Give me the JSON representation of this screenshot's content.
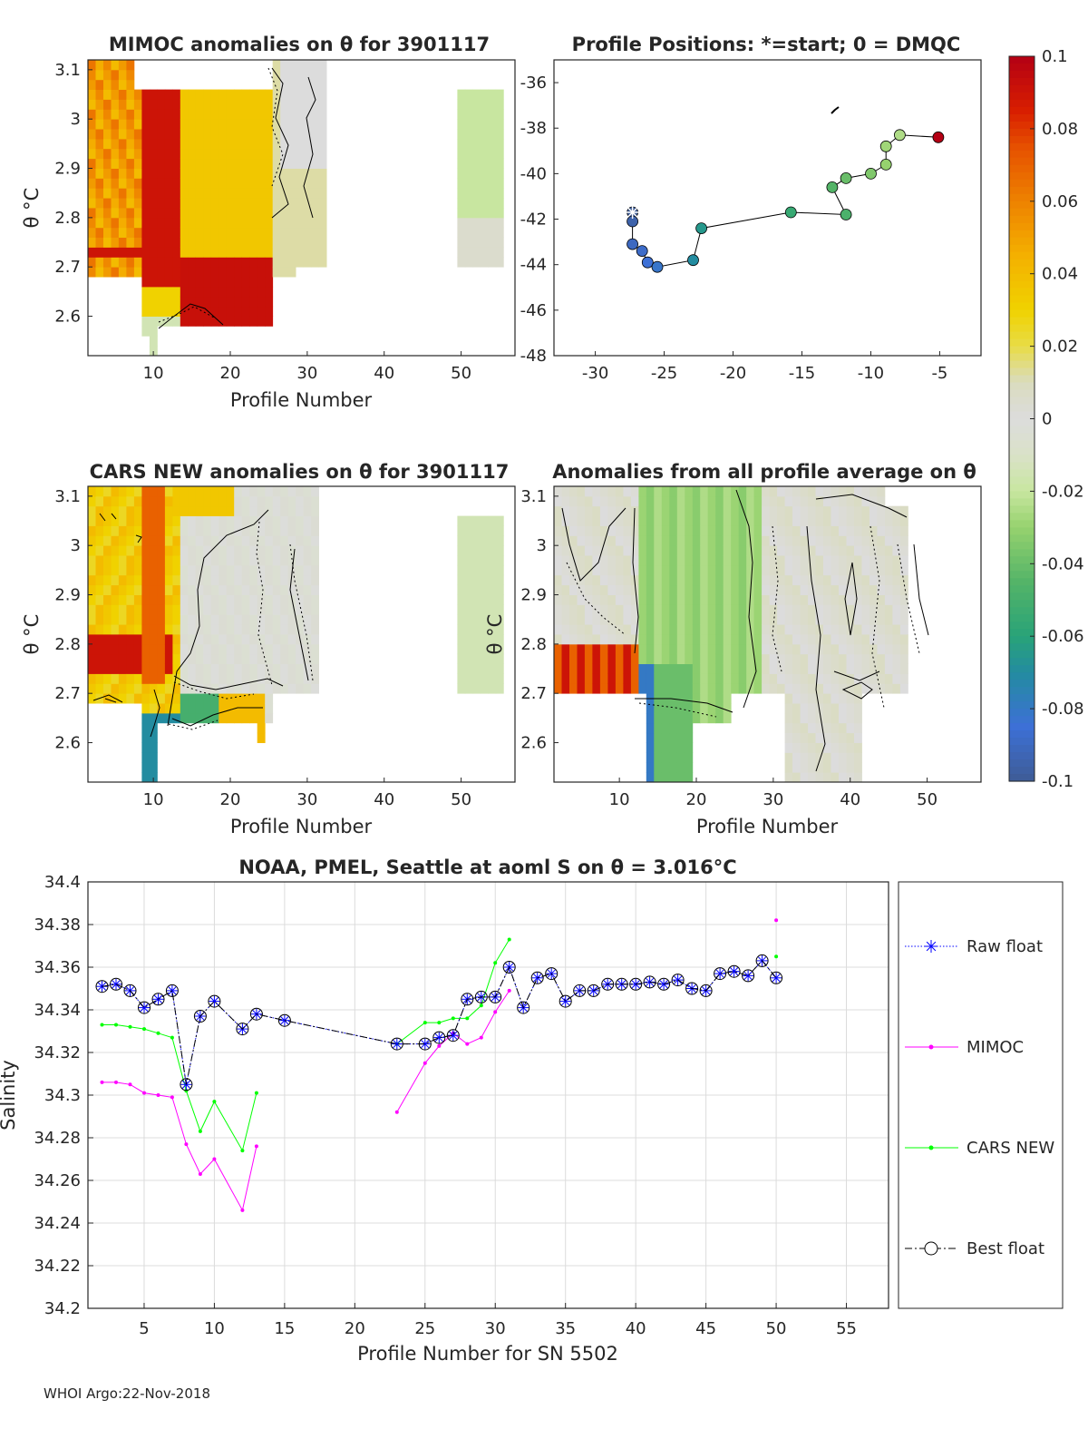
{
  "footer": "WHOI Argo:22-Nov-2018",
  "colorbar": {
    "ticks": [
      "0.1",
      "0.08",
      "0.06",
      "0.04",
      "0.02",
      "0",
      "-0.02",
      "-0.04",
      "-0.06",
      "-0.08",
      "-0.1"
    ],
    "range": [
      -0.1,
      0.1
    ]
  },
  "chart_data": [
    {
      "type": "heatmap",
      "title": "MIMOC anomalies on θ  for 3901117",
      "xlabel": "Profile Number",
      "ylabel": "θ °C",
      "xticks": [
        "10",
        "20",
        "30",
        "40",
        "50"
      ],
      "yticks": [
        "3.1",
        "3",
        "2.9",
        "2.8",
        "2.7",
        "2.6"
      ],
      "xlim": [
        1.5,
        57
      ],
      "ylim": [
        2.52,
        3.12
      ]
    },
    {
      "type": "scatter",
      "title": "Profile Positions: *=start; 0 = DMQC",
      "xticks": [
        "-30",
        "-25",
        "-20",
        "-15",
        "-10",
        "-5"
      ],
      "yticks": [
        "-36",
        "-38",
        "-40",
        "-42",
        "-44",
        "-46",
        "-48"
      ],
      "xlim": [
        -33,
        -2
      ],
      "ylim": [
        -48,
        -35
      ],
      "lon": [
        -27.3,
        -27.3,
        -27.3,
        -26.6,
        -26.2,
        -25.5,
        -22.9,
        -22.3,
        -15.8,
        -11.8,
        -12.8,
        -11.8,
        -10.0,
        -8.9,
        -8.9,
        -7.9,
        -5.1
      ],
      "lat": [
        -41.7,
        -42.1,
        -43.1,
        -43.4,
        -43.9,
        -44.1,
        -43.8,
        -42.4,
        -41.7,
        -41.8,
        -40.6,
        -40.2,
        -40.0,
        -39.6,
        -38.8,
        -38.3,
        -38.4
      ],
      "values": [
        -0.1,
        -0.095,
        -0.09,
        -0.088,
        -0.085,
        -0.082,
        -0.07,
        -0.065,
        -0.055,
        -0.048,
        -0.045,
        -0.04,
        -0.035,
        -0.03,
        -0.028,
        -0.025,
        0.1
      ]
    },
    {
      "type": "heatmap",
      "title": "CARS NEW anomalies on θ for 3901117",
      "xlabel": "Profile Number",
      "ylabel": "θ °C",
      "xticks": [
        "10",
        "20",
        "30",
        "40",
        "50"
      ],
      "yticks": [
        "3.1",
        "3",
        "2.9",
        "2.8",
        "2.7",
        "2.6"
      ],
      "xlim": [
        1.5,
        57
      ],
      "ylim": [
        2.52,
        3.12
      ]
    },
    {
      "type": "heatmap",
      "title": "Anomalies from all profile average on θ",
      "xlabel": "Profile Number",
      "ylabel": "θ °C",
      "xticks": [
        "10",
        "20",
        "30",
        "40",
        "50"
      ],
      "yticks": [
        "3.1",
        "3",
        "2.9",
        "2.8",
        "2.7",
        "2.6"
      ],
      "xlim": [
        1.5,
        57
      ],
      "ylim": [
        2.52,
        3.12
      ]
    },
    {
      "type": "line",
      "title": "NOAA, PMEL, Seattle at aoml S on θ = 3.016°C",
      "xlabel": "Profile Number for SN 5502",
      "ylabel": "Salinity",
      "xticks": [
        "5",
        "10",
        "15",
        "20",
        "25",
        "30",
        "35",
        "40",
        "45",
        "50",
        "55"
      ],
      "yticks": [
        "34.4",
        "34.38",
        "34.36",
        "34.34",
        "34.32",
        "34.3",
        "34.28",
        "34.26",
        "34.24",
        "34.22",
        "34.2"
      ],
      "xlim": [
        1,
        58
      ],
      "ylim": [
        34.2,
        34.4
      ],
      "series": [
        {
          "name": "Raw float",
          "color": "#0000ff",
          "x": [
            2,
            3,
            4,
            5,
            6,
            7,
            8,
            9,
            10,
            12,
            13,
            15,
            23,
            25,
            26,
            27,
            28,
            29,
            30,
            31,
            32,
            33,
            34,
            35,
            36,
            37,
            38,
            39,
            40,
            41,
            42,
            43,
            44,
            45,
            46,
            47,
            48,
            49,
            50
          ],
          "y": [
            34.351,
            34.352,
            34.349,
            34.341,
            34.345,
            34.349,
            34.305,
            34.337,
            34.344,
            34.331,
            34.338,
            34.335,
            34.324,
            34.324,
            34.327,
            34.328,
            34.345,
            34.346,
            34.346,
            34.36,
            34.341,
            34.355,
            34.357,
            34.344,
            34.349,
            34.349,
            34.352,
            34.352,
            34.352,
            34.353,
            34.352,
            34.354,
            34.35,
            34.349,
            34.357,
            34.358,
            34.356,
            34.363,
            34.355
          ]
        },
        {
          "name": "MIMOC",
          "color": "#ff00ff",
          "x": [
            2,
            3,
            4,
            5,
            6,
            7,
            8,
            9,
            10,
            12,
            13,
            null,
            23,
            25,
            26,
            27,
            28,
            29,
            30,
            31,
            null,
            50
          ],
          "y": [
            34.306,
            34.306,
            34.305,
            34.301,
            34.3,
            34.299,
            34.277,
            34.263,
            34.27,
            34.246,
            34.276,
            null,
            34.292,
            34.315,
            34.323,
            34.329,
            34.324,
            34.327,
            34.339,
            34.349,
            null,
            34.382
          ]
        },
        {
          "name": "CARS NEW",
          "color": "#00ff00",
          "x": [
            2,
            3,
            4,
            5,
            6,
            7,
            8,
            9,
            10,
            12,
            13,
            null,
            23,
            25,
            26,
            27,
            28,
            29,
            30,
            31,
            null,
            50
          ],
          "y": [
            34.333,
            34.333,
            34.332,
            34.331,
            34.329,
            34.327,
            34.302,
            34.283,
            34.297,
            34.274,
            34.301,
            null,
            34.324,
            34.334,
            34.334,
            34.336,
            34.336,
            34.342,
            34.362,
            34.373,
            null,
            34.365
          ]
        },
        {
          "name": "Best float",
          "color": "#000000",
          "x": [
            2,
            3,
            4,
            5,
            6,
            7,
            8,
            9,
            10,
            12,
            13,
            15,
            23,
            25,
            26,
            27,
            28,
            29,
            30,
            31,
            32,
            33,
            34,
            35,
            36,
            37,
            38,
            39,
            40,
            41,
            42,
            43,
            44,
            45,
            46,
            47,
            48,
            49,
            50
          ],
          "y": [
            34.351,
            34.352,
            34.349,
            34.341,
            34.345,
            34.349,
            34.305,
            34.337,
            34.344,
            34.331,
            34.338,
            34.335,
            34.324,
            34.324,
            34.327,
            34.328,
            34.345,
            34.346,
            34.346,
            34.36,
            34.341,
            34.355,
            34.357,
            34.344,
            34.349,
            34.349,
            34.352,
            34.352,
            34.352,
            34.353,
            34.352,
            34.354,
            34.35,
            34.349,
            34.357,
            34.358,
            34.356,
            34.363,
            34.355
          ]
        }
      ],
      "legend": [
        "Raw float",
        "MIMOC",
        "CARS NEW",
        "Best float"
      ]
    }
  ]
}
